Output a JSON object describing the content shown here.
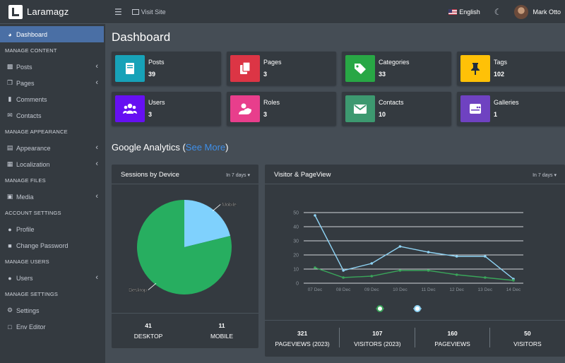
{
  "brand": {
    "name": "Laramagz"
  },
  "sidebar": {
    "items": [
      {
        "type": "item",
        "label": "Dashboard",
        "icon": "dashboard-icon",
        "active": true
      },
      {
        "type": "header",
        "label": "MANAGE CONTENT"
      },
      {
        "type": "item",
        "label": "Posts",
        "icon": "book-icon",
        "chevron": true
      },
      {
        "type": "item",
        "label": "Pages",
        "icon": "copy-icon",
        "chevron": true
      },
      {
        "type": "item",
        "label": "Comments",
        "icon": "comment-icon"
      },
      {
        "type": "item",
        "label": "Contacts",
        "icon": "envelope-icon"
      },
      {
        "type": "header",
        "label": "MANAGE APPEARANCE"
      },
      {
        "type": "item",
        "label": "Appearance",
        "icon": "paint-roller-icon",
        "chevron": true
      },
      {
        "type": "item",
        "label": "Localization",
        "icon": "language-icon",
        "chevron": true
      },
      {
        "type": "header",
        "label": "MANAGE FILES"
      },
      {
        "type": "item",
        "label": "Media",
        "icon": "photo-icon",
        "chevron": true
      },
      {
        "type": "header",
        "label": "ACCOUNT SETTINGS"
      },
      {
        "type": "item",
        "label": "Profile",
        "icon": "user-icon"
      },
      {
        "type": "item",
        "label": "Change Password",
        "icon": "lock-icon"
      },
      {
        "type": "header",
        "label": "MANAGE USERS"
      },
      {
        "type": "item",
        "label": "Users",
        "icon": "users-icon",
        "chevron": true
      },
      {
        "type": "header",
        "label": "MANAGE SETTINGS"
      },
      {
        "type": "item",
        "label": "Settings",
        "icon": "cogs-icon"
      },
      {
        "type": "item",
        "label": "Env Editor",
        "icon": "file-icon"
      }
    ]
  },
  "header": {
    "visit_site": "Visit Site",
    "language": "English",
    "user_name": "Mark Otto"
  },
  "page": {
    "title": "Dashboard"
  },
  "info_boxes": [
    {
      "label": "Posts",
      "value": "39",
      "color": "#17a2b8",
      "icon": "book-icon"
    },
    {
      "label": "Pages",
      "value": "3",
      "color": "#dc3545",
      "icon": "copy-icon"
    },
    {
      "label": "Categories",
      "value": "33",
      "color": "#28a745",
      "icon": "tags-icon"
    },
    {
      "label": "Tags",
      "value": "102",
      "color": "#ffc107",
      "icon": "thumbtack-icon"
    },
    {
      "label": "Users",
      "value": "3",
      "color": "#6610f2",
      "icon": "users-icon"
    },
    {
      "label": "Roles",
      "value": "3",
      "color": "#e83e8c",
      "icon": "user-shield-icon"
    },
    {
      "label": "Contacts",
      "value": "10",
      "color": "#3d9970",
      "icon": "envelope-icon"
    },
    {
      "label": "Galleries",
      "value": "1",
      "color": "#6f42c1",
      "icon": "gallery-icon"
    }
  ],
  "analytics": {
    "title": "Google Analytics",
    "see_more": "See More",
    "sessions": {
      "title": "Sessions by Device",
      "range": "In 7 days",
      "stats": [
        {
          "value": "41",
          "label": "DESKTOP"
        },
        {
          "value": "11",
          "label": "MOBILE"
        }
      ]
    },
    "visitors": {
      "title": "Visitor & PageView",
      "range": "In 7 days",
      "stats": [
        {
          "value": "321",
          "label": "PAGEVIEWS (2023)"
        },
        {
          "value": "107",
          "label": "VISITORS (2023)"
        },
        {
          "value": "160",
          "label": "PAGEVIEWS"
        },
        {
          "value": "50",
          "label": "VISITORS"
        }
      ]
    }
  },
  "chart_data": [
    {
      "type": "pie",
      "title": "Sessions by Device",
      "labels": [
        "Mobile",
        "Desktop"
      ],
      "values": [
        11,
        41
      ],
      "colors": [
        "#7fd1fd",
        "#27ae60"
      ]
    },
    {
      "type": "line",
      "title": "Visitor & PageView",
      "x": [
        "07 Dec",
        "08 Dec",
        "09 Dec",
        "10 Dec",
        "11 Dec",
        "12 Dec",
        "13 Dec",
        "14 Dec"
      ],
      "ylim": [
        0,
        50
      ],
      "yticks": [
        0,
        10,
        20,
        30,
        40,
        50
      ],
      "grid": true,
      "series": [
        {
          "values": [
            48,
            9,
            14,
            26,
            22,
            19,
            19,
            3
          ],
          "color": "#8fd4f5"
        },
        {
          "values": [
            11,
            4,
            5,
            9,
            9,
            6,
            4,
            2
          ],
          "color": "#3aa55a"
        }
      ]
    }
  ]
}
